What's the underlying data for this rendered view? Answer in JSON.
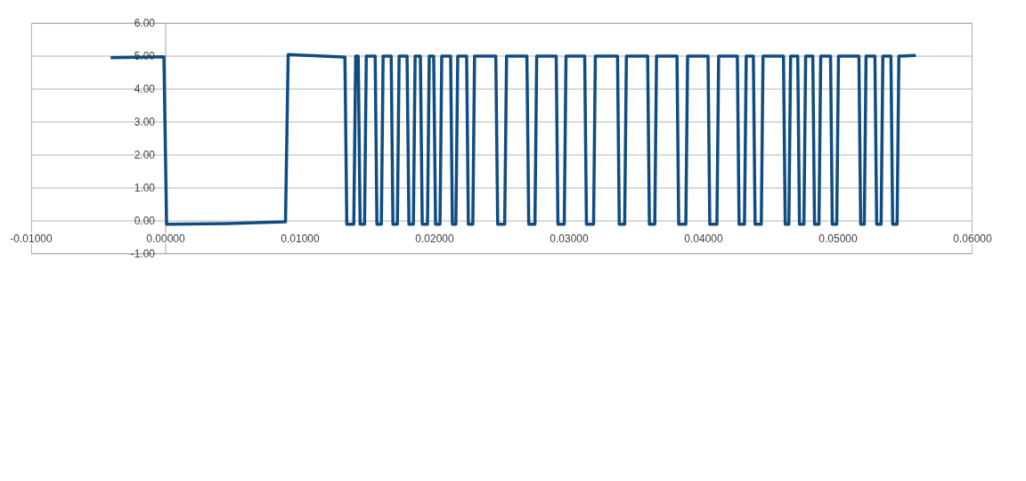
{
  "chart_data": {
    "type": "line",
    "series": [
      {
        "color": "#0f4c81",
        "x": [
          -0.00409,
          -0.00013,
          7e-05,
          0.00462,
          0.00891,
          0.00911,
          0.0132,
          0.01333,
          0.01347,
          0.01399,
          0.01413,
          0.01432,
          0.01446,
          0.01479,
          0.01492,
          0.01558,
          0.01571,
          0.01604,
          0.01617,
          0.01677,
          0.0169,
          0.01723,
          0.01736,
          0.01795,
          0.01809,
          0.01842,
          0.01855,
          0.01894,
          0.01908,
          0.01947,
          0.0196,
          0.01993,
          0.02007,
          0.0204,
          0.02053,
          0.02119,
          0.02132,
          0.02158,
          0.02172,
          0.02238,
          0.02251,
          0.02284,
          0.02297,
          0.02455,
          0.02469,
          0.02521,
          0.02535,
          0.02686,
          0.027,
          0.02746,
          0.02759,
          0.02904,
          0.02917,
          0.02964,
          0.02977,
          0.03116,
          0.03129,
          0.03182,
          0.03195,
          0.0336,
          0.03373,
          0.03413,
          0.03426,
          0.03584,
          0.03597,
          0.03637,
          0.0365,
          0.03802,
          0.03815,
          0.03868,
          0.03881,
          0.04033,
          0.04046,
          0.04099,
          0.04112,
          0.04251,
          0.04264,
          0.04304,
          0.04317,
          0.0437,
          0.04383,
          0.04429,
          0.04442,
          0.04594,
          0.04607,
          0.04634,
          0.04647,
          0.047,
          0.04713,
          0.04746,
          0.04759,
          0.04812,
          0.04825,
          0.04858,
          0.04871,
          0.04944,
          0.04957,
          0.0499,
          0.05003,
          0.05155,
          0.05168,
          0.05195,
          0.05208,
          0.05274,
          0.05287,
          0.0532,
          0.05333,
          0.05393,
          0.05406,
          0.05439,
          0.05452,
          0.05578
        ],
        "values": [
          4.95,
          4.98,
          -0.1,
          -0.08,
          -0.03,
          5.05,
          4.97,
          4.97,
          -0.1,
          -0.1,
          5.0,
          5.0,
          -0.1,
          -0.1,
          5.0,
          5.0,
          -0.1,
          -0.1,
          5.0,
          5.0,
          -0.1,
          -0.1,
          5.0,
          5.0,
          -0.1,
          -0.1,
          5.0,
          5.0,
          -0.1,
          -0.1,
          5.0,
          5.0,
          -0.1,
          -0.1,
          5.0,
          5.0,
          -0.1,
          -0.1,
          5.0,
          5.0,
          -0.1,
          -0.1,
          5.0,
          5.0,
          -0.1,
          -0.1,
          5.0,
          5.0,
          -0.1,
          -0.1,
          5.0,
          5.0,
          -0.1,
          -0.1,
          5.0,
          5.0,
          -0.1,
          -0.1,
          5.0,
          5.0,
          -0.1,
          -0.1,
          5.0,
          5.0,
          -0.1,
          -0.1,
          5.0,
          5.0,
          -0.1,
          -0.1,
          5.0,
          5.0,
          -0.1,
          -0.1,
          5.0,
          5.0,
          -0.1,
          -0.1,
          5.0,
          5.0,
          -0.1,
          -0.1,
          5.0,
          5.0,
          -0.1,
          -0.1,
          5.0,
          5.0,
          -0.1,
          -0.1,
          5.0,
          5.0,
          -0.1,
          -0.1,
          5.0,
          5.0,
          -0.1,
          -0.1,
          5.0,
          5.0,
          -0.1,
          -0.1,
          5.0,
          5.0,
          -0.1,
          -0.1,
          5.0,
          5.0,
          -0.1,
          -0.1,
          5.0,
          5.02
        ]
      }
    ],
    "xlim": [
      -0.01,
      0.06
    ],
    "xticks": [
      {
        "value": -0.01,
        "label": "-0.01000"
      },
      {
        "value": 0,
        "label": "0.00000"
      },
      {
        "value": 0.01,
        "label": "0.01000"
      },
      {
        "value": 0.02,
        "label": "0.02000"
      },
      {
        "value": 0.03,
        "label": "0.03000"
      },
      {
        "value": 0.04,
        "label": "0.04000"
      },
      {
        "value": 0.05,
        "label": "0.05000"
      },
      {
        "value": 0.06,
        "label": "0.06000"
      }
    ],
    "ylim": [
      -1,
      6
    ],
    "yticks": [
      {
        "value": -1,
        "label": "-1.00"
      },
      {
        "value": 0,
        "label": "0.00"
      },
      {
        "value": 1,
        "label": "1.00"
      },
      {
        "value": 2,
        "label": "2.00"
      },
      {
        "value": 3,
        "label": "3.00"
      },
      {
        "value": 4,
        "label": "4.00"
      },
      {
        "value": 5,
        "label": "5.00"
      },
      {
        "value": 6,
        "label": "6.00"
      }
    ],
    "grid": "y",
    "marker": "none",
    "line_style": "solid"
  }
}
